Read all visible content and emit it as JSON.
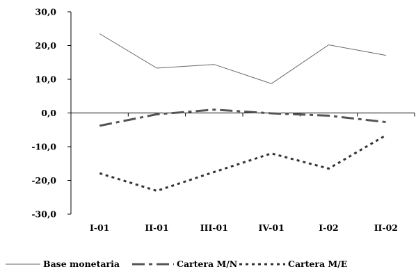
{
  "chart_data": {
    "type": "line",
    "categories": [
      "I-01",
      "II-01",
      "III-01",
      "IV-01",
      "I-02",
      "II-02"
    ],
    "yticks": [
      "30,0",
      "20,0",
      "10,0",
      "0,0",
      "-10,0",
      "-20,0",
      "-30,0"
    ],
    "ylim": [
      -30,
      30
    ],
    "grid": false,
    "legend_position": "bottom",
    "series": [
      {
        "name": "Base monetaria",
        "values": [
          23.5,
          13.3,
          14.4,
          8.7,
          20.2,
          17.1
        ],
        "color": "#666666",
        "style": "solid"
      },
      {
        "name": "Cartera M/N",
        "values": [
          -3.8,
          -0.4,
          1.0,
          -0.1,
          -0.8,
          -2.7
        ],
        "color": "#555555",
        "style": "dash"
      },
      {
        "name": "Cartera M/E",
        "values": [
          -17.9,
          -23.1,
          -17.5,
          -12.0,
          -16.5,
          -6.6
        ],
        "color": "#333333",
        "style": "dot"
      }
    ]
  }
}
